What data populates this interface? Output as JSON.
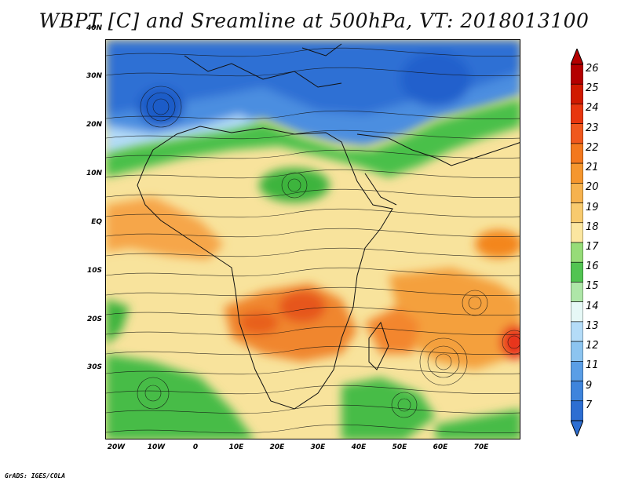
{
  "title": "WBPT [C] and Sreamline at 500hPa, VT: 2018013100",
  "credit": "GrADS: IGES/COLA",
  "axes": {
    "lat_labels": [
      "40N",
      "30N",
      "20N",
      "10N",
      "EQ",
      "10S",
      "20S",
      "30S"
    ],
    "lon_labels": [
      "20W",
      "10W",
      "0",
      "10E",
      "20E",
      "30E",
      "40E",
      "50E",
      "60E",
      "70E"
    ]
  },
  "colorbar": {
    "labels": [
      "26",
      "25",
      "24",
      "23",
      "22",
      "21",
      "20",
      "19",
      "18",
      "17",
      "16",
      "15",
      "14",
      "13",
      "12",
      "11",
      "9",
      "7"
    ],
    "colors": [
      "#b40000",
      "#d01a00",
      "#e8360e",
      "#f0581e",
      "#f3781e",
      "#f5962e",
      "#f6b24e",
      "#f8ca6e",
      "#fbe6a0",
      "#96dc78",
      "#52c452",
      "#aee6a8",
      "#e6f8f6",
      "#b4dcf8",
      "#8cc4f0",
      "#5a9ee6",
      "#3e84dc",
      "#2d6ed2"
    ]
  },
  "legend_colors": {
    "warm_high": "#ee7a1e",
    "warm": "#f8e39c",
    "green": "#3cb43c",
    "cold": "#4c8ee0"
  }
}
